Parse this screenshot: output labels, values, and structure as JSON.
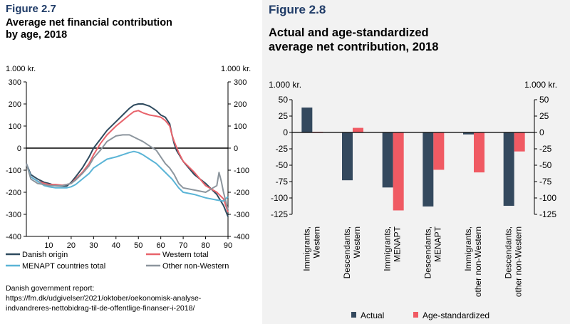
{
  "figure_left": {
    "label": "Figure 2.7",
    "title_line1": "Average net financial contribution",
    "title_line2": "by age, 2018",
    "unit_left": "1.000 kr.",
    "unit_right": "1.000 kr."
  },
  "figure_right": {
    "label": "Figure 2.8",
    "title_line1": "Actual and age-standardized",
    "title_line2": "average net contribution, 2018",
    "unit_left": "1.000 kr.",
    "unit_right": "1.000 kr."
  },
  "source": {
    "line1": "Danish government report:",
    "line2": "https://fm.dk/udgivelser/2021/oktober/oekonomisk-analyse-",
    "line3": "indvandreres-nettobidrag-til-de-offentlige-finanser-i-2018/"
  },
  "chart_data": [
    {
      "type": "line",
      "xlim": [
        0,
        90
      ],
      "ylim": [
        -400,
        300
      ],
      "x_ticks": [
        10,
        20,
        30,
        40,
        50,
        60,
        70,
        80,
        90
      ],
      "y_ticks": [
        300,
        200,
        100,
        0,
        -100,
        -200,
        -300,
        -400
      ],
      "y_ticks_right": [
        300,
        200,
        100,
        0,
        -100,
        -200,
        -300,
        -400
      ],
      "colors": {
        "Danish origin": "#2e4a5e",
        "Western total": "#e8636b",
        "MENAPT countries total": "#5ab4d6",
        "Other non-Western": "#8c959d"
      },
      "legend": [
        "Danish origin",
        "Western total",
        "MENAPT countries total",
        "Other non-Western"
      ],
      "legend_placement": "bottom",
      "series": [
        {
          "name": "Danish origin",
          "points": [
            [
              0,
              -70
            ],
            [
              2,
              -120
            ],
            [
              5,
              -140
            ],
            [
              8,
              -155
            ],
            [
              10,
              -160
            ],
            [
              13,
              -170
            ],
            [
              16,
              -172
            ],
            [
              18,
              -172
            ],
            [
              20,
              -155
            ],
            [
              22,
              -130
            ],
            [
              25,
              -90
            ],
            [
              28,
              -40
            ],
            [
              30,
              0
            ],
            [
              33,
              40
            ],
            [
              36,
              80
            ],
            [
              40,
              120
            ],
            [
              43,
              150
            ],
            [
              46,
              180
            ],
            [
              48,
              195
            ],
            [
              50,
              200
            ],
            [
              52,
              200
            ],
            [
              55,
              190
            ],
            [
              58,
              170
            ],
            [
              60,
              150
            ],
            [
              62,
              140
            ],
            [
              64,
              110
            ],
            [
              65,
              60
            ],
            [
              66,
              20
            ],
            [
              67,
              -10
            ],
            [
              70,
              -60
            ],
            [
              75,
              -120
            ],
            [
              80,
              -160
            ],
            [
              85,
              -210
            ],
            [
              88,
              -260
            ],
            [
              90,
              -310
            ]
          ]
        },
        {
          "name": "Western total",
          "points": [
            [
              0,
              -70
            ],
            [
              2,
              -130
            ],
            [
              5,
              -150
            ],
            [
              8,
              -160
            ],
            [
              10,
              -165
            ],
            [
              13,
              -165
            ],
            [
              16,
              -168
            ],
            [
              18,
              -165
            ],
            [
              20,
              -160
            ],
            [
              22,
              -140
            ],
            [
              25,
              -110
            ],
            [
              28,
              -70
            ],
            [
              30,
              -30
            ],
            [
              33,
              20
            ],
            [
              36,
              60
            ],
            [
              40,
              100
            ],
            [
              43,
              125
            ],
            [
              46,
              150
            ],
            [
              48,
              165
            ],
            [
              50,
              170
            ],
            [
              52,
              160
            ],
            [
              55,
              150
            ],
            [
              58,
              145
            ],
            [
              60,
              140
            ],
            [
              62,
              125
            ],
            [
              64,
              100
            ],
            [
              65,
              60
            ],
            [
              66,
              30
            ],
            [
              68,
              -20
            ],
            [
              70,
              -60
            ],
            [
              75,
              -110
            ],
            [
              80,
              -170
            ],
            [
              85,
              -200
            ],
            [
              88,
              -230
            ],
            [
              90,
              -290
            ]
          ]
        },
        {
          "name": "MENAPT countries total",
          "points": [
            [
              0,
              -70
            ],
            [
              2,
              -130
            ],
            [
              5,
              -150
            ],
            [
              8,
              -170
            ],
            [
              10,
              -175
            ],
            [
              13,
              -180
            ],
            [
              16,
              -180
            ],
            [
              18,
              -180
            ],
            [
              20,
              -175
            ],
            [
              22,
              -165
            ],
            [
              25,
              -140
            ],
            [
              28,
              -115
            ],
            [
              30,
              -90
            ],
            [
              33,
              -70
            ],
            [
              36,
              -50
            ],
            [
              40,
              -40
            ],
            [
              43,
              -30
            ],
            [
              46,
              -20
            ],
            [
              48,
              -15
            ],
            [
              50,
              -20
            ],
            [
              52,
              -30
            ],
            [
              55,
              -50
            ],
            [
              58,
              -70
            ],
            [
              60,
              -90
            ],
            [
              62,
              -110
            ],
            [
              65,
              -140
            ],
            [
              68,
              -180
            ],
            [
              70,
              -200
            ],
            [
              75,
              -210
            ],
            [
              80,
              -225
            ],
            [
              85,
              -235
            ],
            [
              88,
              -240
            ],
            [
              90,
              -220
            ]
          ]
        },
        {
          "name": "Other non-Western",
          "points": [
            [
              0,
              -70
            ],
            [
              2,
              -140
            ],
            [
              5,
              -160
            ],
            [
              8,
              -165
            ],
            [
              10,
              -170
            ],
            [
              13,
              -170
            ],
            [
              16,
              -170
            ],
            [
              18,
              -165
            ],
            [
              20,
              -160
            ],
            [
              22,
              -145
            ],
            [
              25,
              -115
            ],
            [
              28,
              -80
            ],
            [
              30,
              -45
            ],
            [
              33,
              -10
            ],
            [
              36,
              30
            ],
            [
              40,
              55
            ],
            [
              43,
              60
            ],
            [
              46,
              60
            ],
            [
              48,
              50
            ],
            [
              50,
              40
            ],
            [
              52,
              30
            ],
            [
              55,
              10
            ],
            [
              58,
              -10
            ],
            [
              60,
              -40
            ],
            [
              62,
              -70
            ],
            [
              64,
              -90
            ],
            [
              66,
              -120
            ],
            [
              68,
              -160
            ],
            [
              70,
              -180
            ],
            [
              75,
              -190
            ],
            [
              80,
              -200
            ],
            [
              85,
              -170
            ],
            [
              86,
              -110
            ],
            [
              87,
              -150
            ],
            [
              88,
              -200
            ],
            [
              90,
              -280
            ]
          ]
        }
      ]
    },
    {
      "type": "bar",
      "ylim": [
        -125,
        50
      ],
      "y_ticks": [
        50,
        25,
        0,
        -25,
        -50,
        -75,
        -100,
        -125
      ],
      "y_ticks_right": [
        50,
        25,
        0,
        -25,
        -50,
        -75,
        -100,
        -125
      ],
      "categories": [
        [
          "Immigrants,",
          "Western"
        ],
        [
          "Descendants,",
          "Western"
        ],
        [
          "Immigrants,",
          "MENAPT"
        ],
        [
          "Descendants,",
          "MENAPT"
        ],
        [
          "Immigrants,",
          "other non-Western"
        ],
        [
          "Descendants,",
          "other non-Western"
        ]
      ],
      "series": [
        {
          "name": "Actual",
          "color": "#34495e",
          "values": [
            38,
            -73,
            -84,
            -113,
            -3,
            -112
          ]
        },
        {
          "name": "Age-standardized",
          "color": "#f05a63",
          "values": [
            1,
            7,
            -119,
            -57,
            -61,
            -29
          ]
        }
      ],
      "legend_placement": "bottom"
    }
  ]
}
